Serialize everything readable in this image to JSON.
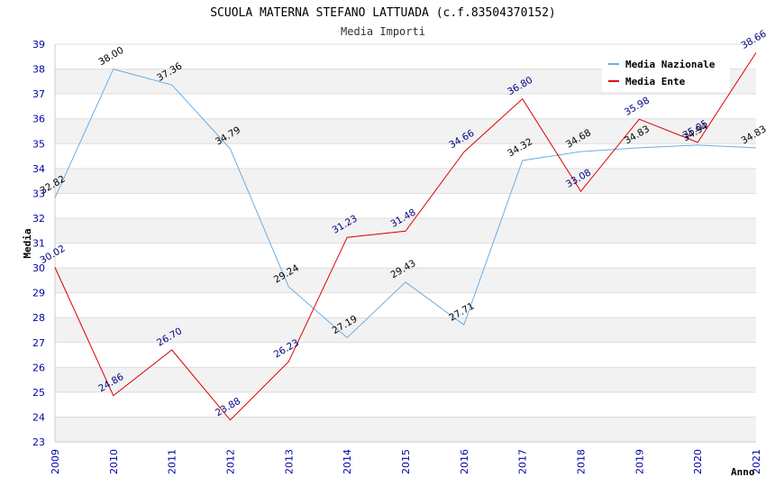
{
  "chart_data": {
    "type": "line",
    "title": "SCUOLA MATERNA STEFANO LATTUADA (c.f.83504370152)",
    "subtitle": "Media Importi",
    "xlabel": "Anno",
    "ylabel": "Media",
    "ylim": [
      23,
      39
    ],
    "yticks": [
      "23",
      "24",
      "25",
      "26",
      "27",
      "28",
      "29",
      "30",
      "31",
      "32",
      "33",
      "34",
      "35",
      "36",
      "37",
      "38",
      "39"
    ],
    "categories": [
      "2009",
      "2010",
      "2011",
      "2012",
      "2013",
      "2014",
      "2015",
      "2016",
      "2017",
      "2018",
      "2019",
      "2020",
      "2021"
    ],
    "grid": true,
    "legend_position": "top-right",
    "series": [
      {
        "name": "Media Nazionale",
        "color": "#6aaee6",
        "label_color": "#000000",
        "values": [
          32.82,
          38.0,
          37.36,
          34.79,
          29.24,
          27.19,
          29.43,
          27.71,
          34.32,
          34.68,
          34.83,
          34.94,
          34.83
        ],
        "labels": [
          "32.82",
          "38.00",
          "37.36",
          "34.79",
          "29.24",
          "27.19",
          "29.43",
          "27.71",
          "34.32",
          "34.68",
          "34.83",
          "34.94",
          "34.83"
        ]
      },
      {
        "name": "Media Ente",
        "color": "#dd0000",
        "label_color": "#000080",
        "values": [
          30.02,
          24.86,
          26.7,
          23.88,
          26.23,
          31.23,
          31.48,
          34.66,
          36.8,
          33.08,
          35.98,
          35.05,
          38.66
        ],
        "labels": [
          "30.02",
          "24.86",
          "26.70",
          "23.88",
          "26.23",
          "31.23",
          "31.48",
          "34.66",
          "36.80",
          "33.08",
          "35.98",
          "35.05",
          "38.66"
        ]
      }
    ]
  }
}
